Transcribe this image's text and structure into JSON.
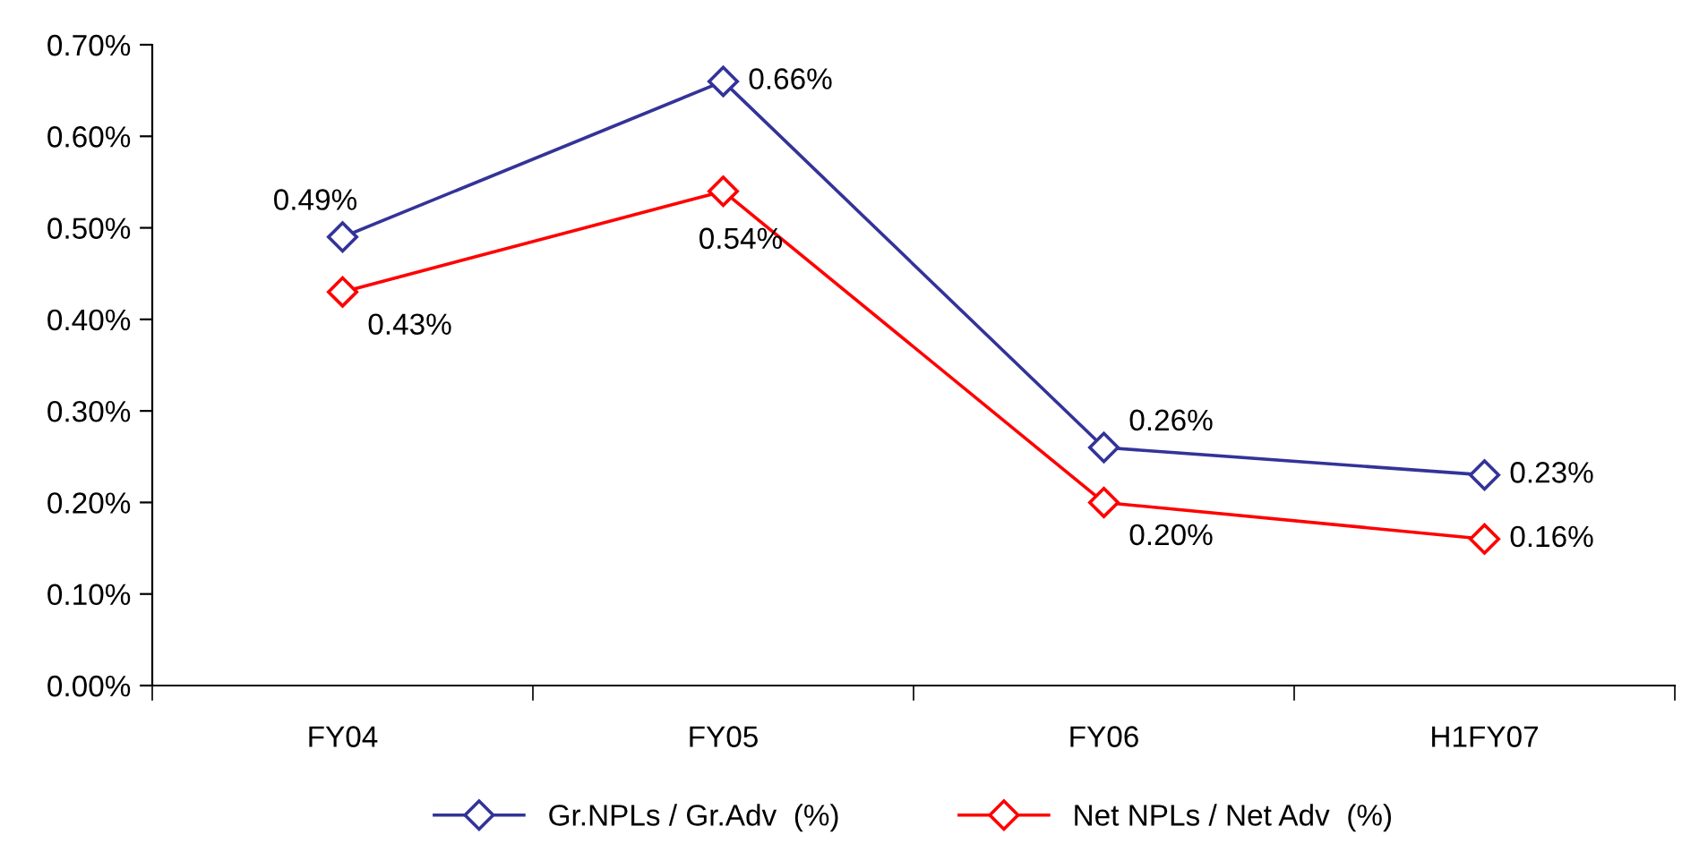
{
  "chart_data": {
    "type": "line",
    "categories": [
      "FY04",
      "FY05",
      "FY06",
      "H1FY07"
    ],
    "series": [
      {
        "name": "Gr.NPLs / Gr.Adv  (%)",
        "color": "#333399",
        "values": [
          0.49,
          0.66,
          0.26,
          0.23
        ],
        "value_labels": [
          "0.49%",
          "0.66%",
          "0.26%",
          "0.23%"
        ]
      },
      {
        "name": "Net NPLs / Net Adv  (%)",
        "color": "#ff0000",
        "values": [
          0.43,
          0.54,
          0.2,
          0.16
        ],
        "value_labels": [
          "0.43%",
          "0.54%",
          "0.20%",
          "0.16%"
        ]
      }
    ],
    "ylim": [
      0,
      0.7
    ],
    "yticks": [
      {
        "value": 0,
        "label": "0.00%"
      },
      {
        "value": 0.1,
        "label": "0.10%"
      },
      {
        "value": 0.2,
        "label": "0.20%"
      },
      {
        "value": 0.3,
        "label": "0.30%"
      },
      {
        "value": 0.4,
        "label": "0.40%"
      },
      {
        "value": 0.5,
        "label": "0.50%"
      },
      {
        "value": 0.6,
        "label": "0.60%"
      },
      {
        "value": 0.7,
        "label": "0.70%"
      }
    ],
    "marker": "diamond",
    "line_style": "solid",
    "grid": false,
    "legend": "bottom"
  }
}
